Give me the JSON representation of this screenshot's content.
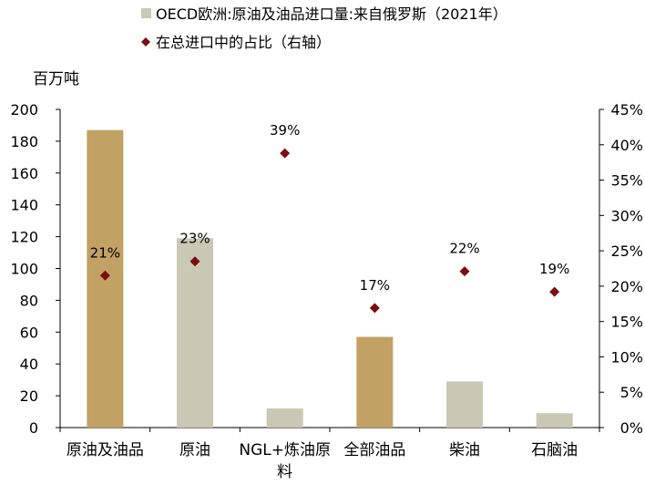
{
  "chart_data": {
    "type": "bar",
    "title": "",
    "categories": [
      "原油及油品",
      "原油",
      "NGL+炼油原料",
      "全部油品",
      "柴油",
      "石脑油"
    ],
    "series": [
      {
        "name": "OECD欧洲:原油及油品进口量:来自俄罗斯（2021年）",
        "type": "bar",
        "axis": "left",
        "values": [
          187,
          119,
          12,
          57,
          29,
          9
        ],
        "colors": [
          "#c2a164",
          "#c8c8b5",
          "#c8c8b5",
          "#c2a164",
          "#c8c8b5",
          "#c8c8b5"
        ]
      },
      {
        "name": "在总进口中的占比（右轴）",
        "type": "scatter",
        "axis": "right",
        "values": [
          21.5,
          23.5,
          38.8,
          16.9,
          22.1,
          19.2
        ],
        "labels": [
          "21%",
          "23%",
          "39%",
          "17%",
          "22%",
          "19%"
        ],
        "color": "#7a0e0e"
      }
    ],
    "ylabel": "百万吨",
    "ylim": [
      0,
      200
    ],
    "yticks": [
      "0",
      "20",
      "40",
      "60",
      "80",
      "100",
      "120",
      "140",
      "160",
      "180",
      "200"
    ],
    "y2lim": [
      0,
      45
    ],
    "y2ticks": [
      "0%",
      "5%",
      "10%",
      "15%",
      "20%",
      "25%",
      "30%",
      "35%",
      "40%",
      "45%"
    ],
    "grid": false,
    "legend_position": "top-left",
    "legend": [
      {
        "label": "OECD欧洲:原油及油品进口量:来自俄罗斯（2021年）",
        "marker": "square",
        "color": "#c8c8b5"
      },
      {
        "label": "在总进口中的占比（右轴）",
        "marker": "diamond",
        "color": "#7a0e0e"
      }
    ]
  }
}
